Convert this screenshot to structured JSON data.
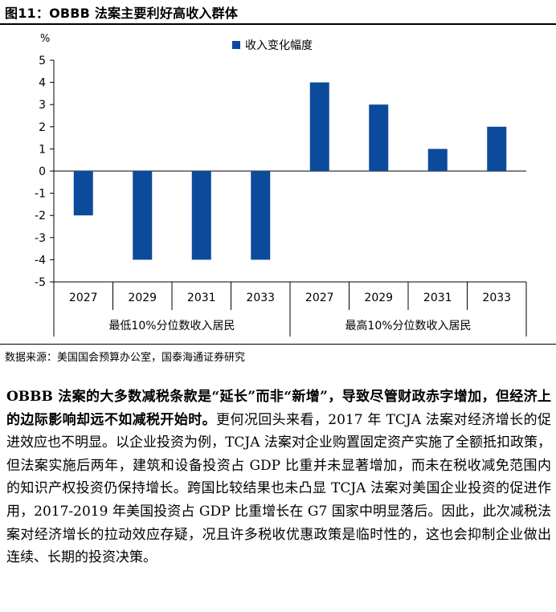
{
  "figure_title": "图11：OBBB 法案主要利好高收入群体",
  "source_note": "数据来源：美国国会预算办公室，国泰海通证券研究",
  "colors": {
    "bar": "#0c4a9c",
    "axis": "#000000"
  },
  "chart_data": {
    "type": "bar",
    "unit": "%",
    "legend": "收入变化幅度",
    "legend_position": "top",
    "ylim": [
      -5,
      5
    ],
    "yticks": [
      5,
      4,
      3,
      2,
      1,
      0,
      -1,
      -2,
      -3,
      -4,
      -5
    ],
    "grid": false,
    "categories": [
      "2027",
      "2029",
      "2031",
      "2033",
      "2027",
      "2029",
      "2031",
      "2033"
    ],
    "groups": [
      {
        "label": "最低10%分位数收入居民",
        "count": 4
      },
      {
        "label": "最高10%分位数收入居民",
        "count": 4
      }
    ],
    "series": [
      {
        "name": "收入变化幅度",
        "values": [
          -2,
          -4,
          -4,
          -4,
          4,
          3,
          1,
          2
        ]
      }
    ]
  },
  "body": {
    "lead_bold": "OBBB 法案的大多数减税条款是“延长”而非“新增”，导致尽管财政赤字增加，但经济上的边际影响却远不如减税开始时。",
    "text": "更何况回头来看，2017 年 TCJA 法案对经济增长的促进效应也不明显。以企业投资为例，TCJA 法案对企业购置固定资产实施了全额抵扣政策，但法案实施后两年，建筑和设备投资占 GDP 比重并未显著增加，而未在税收减免范围内的知识产权投资仍保持增长。跨国比较结果也未凸显 TCJA 法案对美国企业投资的促进作用，2017-2019 年美国投资占 GDP 比重增长在 G7 国家中明显落后。因此，此次减税法案对经济增长的拉动效应存疑，况且许多税收优惠政策是临时性的，这也会抑制企业做出连续、长期的投资决策。"
  }
}
